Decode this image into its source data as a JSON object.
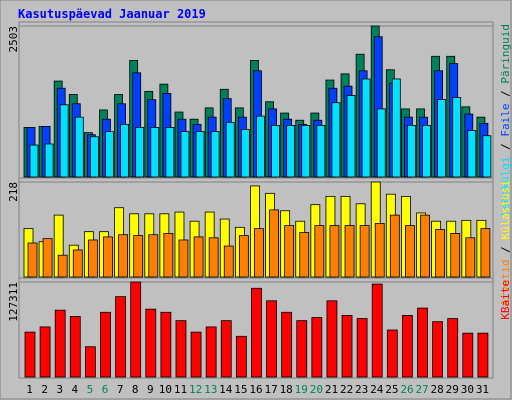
{
  "title": "Kasutuspäevad Jaanuar 2019",
  "legend_separator": " / ",
  "chart_data": [
    {
      "type": "bar",
      "ylim": [
        0,
        2503
      ],
      "yticks": [
        2503
      ],
      "series": [
        {
          "name": "Päringuid",
          "color": "#00805c",
          "values": [
            821,
            838,
            1590,
            1368,
            735,
            1112,
            1368,
            1932,
            1419,
            1539,
            1077,
            958,
            1146,
            1454,
            1146,
            1932,
            1248,
            1060,
            941,
            1060,
            1607,
            1710,
            2035,
            2503,
            1778,
            1129,
            1129,
            2001,
            2001,
            1163,
            992
          ]
        },
        {
          "name": "Faile",
          "color": "#0040ff",
          "values": [
            821,
            838,
            1471,
            1214,
            701,
            958,
            1214,
            1727,
            1282,
            1385,
            958,
            872,
            992,
            1300,
            992,
            1761,
            1129,
            958,
            872,
            941,
            1471,
            1505,
            1761,
            2325,
            1556,
            992,
            992,
            1761,
            1881,
            1043,
            889
          ]
        },
        {
          "name": "Lehekülgi",
          "color": "#00e0ff",
          "values": [
            530,
            547,
            1197,
            992,
            667,
            752,
            872,
            821,
            821,
            821,
            752,
            752,
            752,
            906,
            787,
            1009,
            855,
            855,
            855,
            855,
            1231,
            1351,
            1625,
            1129,
            1625,
            855,
            855,
            1283,
            1317,
            770,
            684
          ]
        }
      ]
    },
    {
      "type": "bar",
      "ylim": [
        0,
        218
      ],
      "yticks": [
        218
      ],
      "series": [
        {
          "name": "Külastusi",
          "color": "#ffff00",
          "values": [
            111,
            81,
            142,
            73,
            104,
            104,
            159,
            145,
            145,
            145,
            149,
            128,
            149,
            133,
            114,
            209,
            192,
            152,
            128,
            166,
            185,
            185,
            168,
            218,
            190,
            185,
            147,
            128,
            128,
            130,
            130
          ]
        },
        {
          "name": "Arvutid",
          "color": "#ff8000",
          "values": [
            78,
            88,
            50,
            62,
            85,
            92,
            97,
            95,
            97,
            100,
            85,
            92,
            90,
            71,
            95,
            111,
            154,
            118,
            102,
            118,
            118,
            118,
            118,
            123,
            142,
            118,
            142,
            109,
            100,
            90,
            111
          ]
        }
      ]
    },
    {
      "type": "bar",
      "ylim": [
        0,
        127311
      ],
      "yticks": [
        127311
      ],
      "categories": [
        "1",
        "2",
        "3",
        "4",
        "5",
        "6",
        "7",
        "8",
        "9",
        "10",
        "11",
        "12",
        "13",
        "14",
        "15",
        "16",
        "17",
        "18",
        "19",
        "20",
        "21",
        "22",
        "23",
        "24",
        "25",
        "26",
        "27",
        "28",
        "29",
        "30",
        "31"
      ],
      "category_colors": [
        "#000000",
        "#000000",
        "#000000",
        "#000000",
        "#00805c",
        "#00805c",
        "#000000",
        "#000000",
        "#000000",
        "#000000",
        "#000000",
        "#00805c",
        "#00805c",
        "#000000",
        "#000000",
        "#000000",
        "#000000",
        "#000000",
        "#00805c",
        "#00805c",
        "#000000",
        "#000000",
        "#000000",
        "#000000",
        "#000000",
        "#00805c",
        "#00805c",
        "#000000",
        "#000000",
        "#000000",
        "#000000"
      ],
      "series": [
        {
          "name": "KBaite",
          "color": "#ff0000",
          "values": [
            60157,
            67152,
            89536,
            81142,
            40571,
            86738,
            107723,
            127311,
            90935,
            86738,
            75546,
            60157,
            67152,
            75546,
            54561,
            118915,
            102127,
            86738,
            75546,
            79743,
            102127,
            82541,
            78344,
            124511,
            62955,
            82541,
            92334,
            74147,
            78344,
            58758,
            58758
          ]
        }
      ]
    }
  ]
}
